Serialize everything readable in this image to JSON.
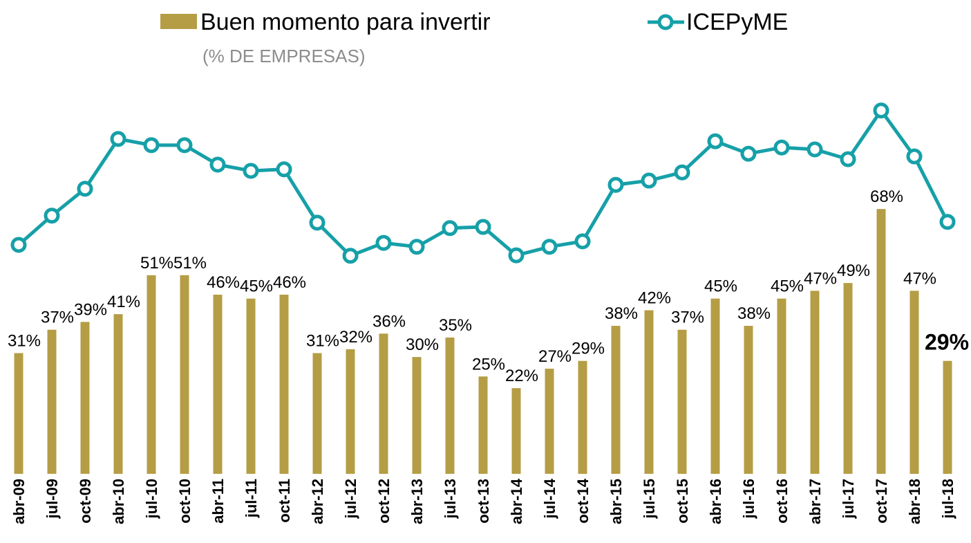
{
  "chart_data": {
    "type": "bar_line",
    "subtitle": "(% DE EMPRESAS)",
    "categories": [
      "abr-09",
      "jul-09",
      "oct-09",
      "abr-10",
      "jul-10",
      "oct-10",
      "abr-11",
      "jul-11",
      "oct-11",
      "abr-12",
      "jul-12",
      "oct-12",
      "abr-13",
      "jul-13",
      "oct-13",
      "abr-14",
      "jul-14",
      "oct-14",
      "abr-15",
      "jul-15",
      "oct-15",
      "abr-16",
      "jul-16",
      "oct-16",
      "abr-17",
      "jul-17",
      "oct-17",
      "abr-18",
      "jul-18"
    ],
    "ylim": [
      0,
      100
    ],
    "series": [
      {
        "name": "Buen momento para invertir",
        "type": "bar",
        "color": "#b59d45",
        "values": [
          31,
          37,
          39,
          41,
          51,
          51,
          46,
          45,
          46,
          31,
          32,
          36,
          30,
          35,
          25,
          22,
          27,
          29,
          38,
          42,
          37,
          45,
          38,
          45,
          47,
          49,
          68,
          47,
          29
        ],
        "value_labels": [
          "31%",
          "37%",
          "39%",
          "41%",
          "51%",
          "51%",
          "46%",
          "45%",
          "46%",
          "31%",
          "32%",
          "36%",
          "30%",
          "35%",
          "25%",
          "22%",
          "27%",
          "29%",
          "38%",
          "42%",
          "37%",
          "45%",
          "38%",
          "45%",
          "47%",
          "49%",
          "68%",
          "47%",
          "29%"
        ]
      },
      {
        "name": "ICEPyME",
        "type": "line",
        "color": "#16a0a8",
        "values": [
          58.8,
          66.3,
          73.2,
          86.0,
          84.4,
          84.4,
          79.4,
          77.8,
          78.2,
          64.5,
          56.0,
          59.3,
          58.3,
          63.1,
          63.4,
          56.1,
          58.3,
          59.7,
          74.2,
          75.3,
          77.4,
          85.4,
          82.2,
          83.8,
          83.3,
          80.8,
          93.3,
          81.5,
          64.7
        ]
      }
    ]
  }
}
